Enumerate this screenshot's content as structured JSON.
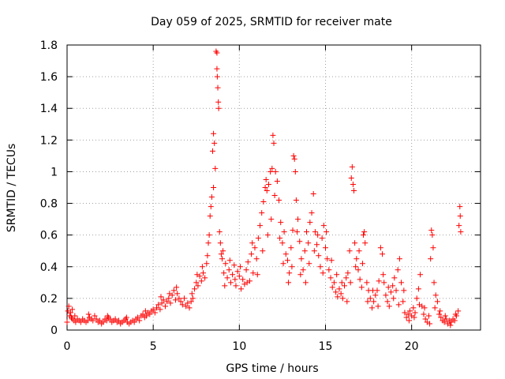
{
  "chart_data": {
    "type": "scatter",
    "title": "Day 059 of 2025, SRMTID for receiver mate",
    "xlabel": "GPS time / hours",
    "ylabel": "SRMTID / TECUs",
    "xlim": [
      0,
      24
    ],
    "ylim": [
      0,
      1.8
    ],
    "xticks": [
      0,
      5,
      10,
      15,
      20
    ],
    "xtick_labels": [
      "0",
      "5",
      "10",
      "15",
      "20"
    ],
    "yticks": [
      0,
      0.2,
      0.4,
      0.6,
      0.8,
      1.0,
      1.2,
      1.4,
      1.6,
      1.8
    ],
    "ytick_labels": [
      "0",
      "0.2",
      "0.4",
      "0.6",
      "0.8",
      "1",
      "1.2",
      "1.4",
      "1.6",
      "1.8"
    ],
    "grid": true,
    "marker": "plus",
    "color": "#ff0000",
    "series": [
      {
        "name": "SRMTID",
        "points": [
          [
            0.0,
            0.05
          ],
          [
            0.05,
            0.12
          ],
          [
            0.1,
            0.15
          ],
          [
            0.15,
            0.09
          ],
          [
            0.2,
            0.11
          ],
          [
            0.25,
            0.08
          ],
          [
            0.3,
            0.07
          ],
          [
            0.4,
            0.06
          ],
          [
            0.5,
            0.05
          ],
          [
            0.6,
            0.07
          ],
          [
            0.7,
            0.06
          ],
          [
            0.8,
            0.05
          ],
          [
            0.9,
            0.07
          ],
          [
            1.0,
            0.06
          ],
          [
            1.1,
            0.05
          ],
          [
            1.2,
            0.06
          ],
          [
            1.3,
            0.08
          ],
          [
            1.4,
            0.07
          ],
          [
            1.5,
            0.06
          ],
          [
            1.6,
            0.09
          ],
          [
            1.7,
            0.07
          ],
          [
            1.8,
            0.05
          ],
          [
            1.9,
            0.06
          ],
          [
            2.0,
            0.04
          ],
          [
            2.1,
            0.05
          ],
          [
            2.2,
            0.07
          ],
          [
            2.3,
            0.06
          ],
          [
            2.4,
            0.08
          ],
          [
            2.5,
            0.07
          ],
          [
            2.6,
            0.05
          ],
          [
            2.7,
            0.06
          ],
          [
            2.8,
            0.07
          ],
          [
            2.9,
            0.05
          ],
          [
            3.0,
            0.06
          ],
          [
            3.1,
            0.04
          ],
          [
            3.2,
            0.05
          ],
          [
            3.3,
            0.06
          ],
          [
            3.4,
            0.07
          ],
          [
            3.5,
            0.05
          ],
          [
            3.6,
            0.04
          ],
          [
            3.7,
            0.05
          ],
          [
            3.8,
            0.06
          ],
          [
            3.9,
            0.05
          ],
          [
            4.0,
            0.07
          ],
          [
            4.1,
            0.08
          ],
          [
            4.2,
            0.06
          ],
          [
            4.3,
            0.09
          ],
          [
            4.4,
            0.1
          ],
          [
            4.5,
            0.08
          ],
          [
            4.6,
            0.09
          ],
          [
            4.7,
            0.11
          ],
          [
            4.8,
            0.1
          ],
          [
            4.9,
            0.12
          ],
          [
            5.0,
            0.13
          ],
          [
            5.1,
            0.11
          ],
          [
            5.2,
            0.14
          ],
          [
            5.3,
            0.16
          ],
          [
            5.4,
            0.13
          ],
          [
            5.5,
            0.17
          ],
          [
            5.6,
            0.19
          ],
          [
            5.7,
            0.15
          ],
          [
            5.8,
            0.18
          ],
          [
            5.9,
            0.2
          ],
          [
            6.0,
            0.17
          ],
          [
            6.1,
            0.22
          ],
          [
            6.2,
            0.25
          ],
          [
            6.3,
            0.19
          ],
          [
            6.4,
            0.23
          ],
          [
            6.5,
            0.2
          ],
          [
            6.6,
            0.18
          ],
          [
            6.7,
            0.16
          ],
          [
            6.8,
            0.2
          ],
          [
            6.9,
            0.15
          ],
          [
            7.0,
            0.17
          ],
          [
            7.1,
            0.14
          ],
          [
            7.2,
            0.18
          ],
          [
            7.3,
            0.2
          ],
          [
            7.4,
            0.26
          ],
          [
            7.5,
            0.3
          ],
          [
            7.6,
            0.28
          ],
          [
            7.7,
            0.34
          ],
          [
            7.8,
            0.31
          ],
          [
            7.9,
            0.36
          ],
          [
            8.0,
            0.33
          ],
          [
            8.1,
            0.42
          ],
          [
            8.2,
            0.55
          ],
          [
            8.3,
            0.72
          ],
          [
            8.35,
            0.78
          ],
          [
            8.4,
            0.84
          ],
          [
            8.45,
            1.13
          ],
          [
            8.5,
            1.24
          ],
          [
            8.5,
            0.9
          ],
          [
            8.55,
            1.18
          ],
          [
            8.6,
            1.02
          ],
          [
            8.65,
            1.76
          ],
          [
            8.7,
            1.75
          ],
          [
            8.7,
            1.65
          ],
          [
            8.72,
            1.6
          ],
          [
            8.75,
            1.53
          ],
          [
            8.78,
            1.44
          ],
          [
            8.8,
            1.4
          ],
          [
            8.85,
            0.62
          ],
          [
            8.9,
            0.55
          ],
          [
            8.95,
            0.48
          ],
          [
            9.0,
            0.45
          ],
          [
            9.1,
            0.36
          ],
          [
            9.2,
            0.42
          ],
          [
            9.3,
            0.33
          ],
          [
            9.4,
            0.38
          ],
          [
            9.5,
            0.3
          ],
          [
            9.6,
            0.35
          ],
          [
            9.7,
            0.41
          ],
          [
            9.8,
            0.28
          ],
          [
            9.9,
            0.37
          ],
          [
            10.0,
            0.34
          ],
          [
            10.1,
            0.26
          ],
          [
            10.2,
            0.32
          ],
          [
            10.3,
            0.29
          ],
          [
            10.4,
            0.38
          ],
          [
            10.5,
            0.43
          ],
          [
            10.6,
            0.31
          ],
          [
            10.7,
            0.48
          ],
          [
            10.8,
            0.36
          ],
          [
            10.9,
            0.52
          ],
          [
            11.0,
            0.45
          ],
          [
            11.1,
            0.58
          ],
          [
            11.2,
            0.66
          ],
          [
            11.3,
            0.74
          ],
          [
            11.4,
            0.81
          ],
          [
            11.5,
            0.9
          ],
          [
            11.55,
            0.95
          ],
          [
            11.6,
            0.88
          ],
          [
            11.7,
            0.92
          ],
          [
            11.8,
            1.0
          ],
          [
            11.9,
            1.02
          ],
          [
            11.95,
            1.23
          ],
          [
            12.0,
            1.18
          ],
          [
            12.1,
            1.0
          ],
          [
            12.2,
            0.94
          ],
          [
            12.3,
            0.82
          ],
          [
            12.4,
            0.68
          ],
          [
            12.5,
            0.55
          ],
          [
            12.6,
            0.62
          ],
          [
            12.7,
            0.48
          ],
          [
            12.8,
            0.44
          ],
          [
            12.9,
            0.36
          ],
          [
            13.0,
            0.52
          ],
          [
            13.1,
            0.63
          ],
          [
            13.15,
            1.1
          ],
          [
            13.2,
            1.08
          ],
          [
            13.25,
            1.0
          ],
          [
            13.3,
            0.82
          ],
          [
            13.4,
            0.7
          ],
          [
            13.5,
            0.56
          ],
          [
            13.6,
            0.45
          ],
          [
            13.7,
            0.38
          ],
          [
            13.8,
            0.5
          ],
          [
            13.9,
            0.62
          ],
          [
            14.0,
            0.55
          ],
          [
            14.1,
            0.68
          ],
          [
            14.2,
            0.74
          ],
          [
            14.3,
            0.86
          ],
          [
            14.4,
            0.62
          ],
          [
            14.5,
            0.54
          ],
          [
            14.6,
            0.47
          ],
          [
            14.7,
            0.4
          ],
          [
            14.8,
            0.58
          ],
          [
            14.9,
            0.66
          ],
          [
            15.0,
            0.52
          ],
          [
            15.1,
            0.45
          ],
          [
            15.2,
            0.38
          ],
          [
            15.3,
            0.33
          ],
          [
            15.4,
            0.27
          ],
          [
            15.5,
            0.3
          ],
          [
            15.6,
            0.24
          ],
          [
            15.7,
            0.21
          ],
          [
            15.8,
            0.26
          ],
          [
            15.9,
            0.23
          ],
          [
            16.0,
            0.2
          ],
          [
            16.1,
            0.28
          ],
          [
            16.2,
            0.33
          ],
          [
            16.3,
            0.36
          ],
          [
            16.4,
            0.5
          ],
          [
            16.5,
            0.96
          ],
          [
            16.55,
            1.03
          ],
          [
            16.6,
            0.92
          ],
          [
            16.65,
            0.88
          ],
          [
            16.7,
            0.55
          ],
          [
            16.8,
            0.45
          ],
          [
            16.9,
            0.38
          ],
          [
            17.0,
            0.32
          ],
          [
            17.1,
            0.27
          ],
          [
            17.2,
            0.6
          ],
          [
            17.25,
            0.62
          ],
          [
            17.3,
            0.55
          ],
          [
            17.4,
            0.3
          ],
          [
            17.5,
            0.25
          ],
          [
            17.6,
            0.2
          ],
          [
            17.7,
            0.14
          ],
          [
            17.8,
            0.18
          ],
          [
            17.9,
            0.22
          ],
          [
            18.0,
            0.25
          ],
          [
            18.1,
            0.31
          ],
          [
            18.2,
            0.52
          ],
          [
            18.3,
            0.48
          ],
          [
            18.4,
            0.3
          ],
          [
            18.5,
            0.22
          ],
          [
            18.6,
            0.18
          ],
          [
            18.7,
            0.15
          ],
          [
            18.8,
            0.24
          ],
          [
            18.9,
            0.28
          ],
          [
            19.0,
            0.33
          ],
          [
            19.1,
            0.25
          ],
          [
            19.2,
            0.38
          ],
          [
            19.3,
            0.45
          ],
          [
            19.4,
            0.3
          ],
          [
            19.5,
            0.18
          ],
          [
            19.6,
            0.11
          ],
          [
            19.7,
            0.08
          ],
          [
            19.8,
            0.1
          ],
          [
            19.9,
            0.12
          ],
          [
            20.0,
            0.09
          ],
          [
            20.1,
            0.14
          ],
          [
            20.2,
            0.11
          ],
          [
            20.3,
            0.2
          ],
          [
            20.4,
            0.26
          ],
          [
            20.5,
            0.35
          ],
          [
            20.6,
            0.15
          ],
          [
            20.7,
            0.1
          ],
          [
            20.8,
            0.07
          ],
          [
            20.9,
            0.05
          ],
          [
            21.0,
            0.09
          ],
          [
            21.1,
            0.45
          ],
          [
            21.15,
            0.63
          ],
          [
            21.2,
            0.6
          ],
          [
            21.25,
            0.52
          ],
          [
            21.3,
            0.3
          ],
          [
            21.4,
            0.22
          ],
          [
            21.5,
            0.18
          ],
          [
            21.6,
            0.1
          ],
          [
            21.7,
            0.08
          ],
          [
            21.8,
            0.06
          ],
          [
            21.9,
            0.05
          ],
          [
            22.0,
            0.07
          ],
          [
            22.1,
            0.04
          ],
          [
            22.2,
            0.06
          ],
          [
            22.3,
            0.05
          ],
          [
            22.4,
            0.07
          ],
          [
            22.5,
            0.06
          ],
          [
            22.6,
            0.09
          ],
          [
            22.7,
            0.12
          ],
          [
            22.75,
            0.66
          ],
          [
            22.8,
            0.78
          ],
          [
            22.82,
            0.72
          ],
          [
            22.85,
            0.62
          ],
          [
            0.3,
            0.13
          ],
          [
            0.45,
            0.09
          ],
          [
            1.25,
            0.1
          ],
          [
            2.35,
            0.09
          ],
          [
            3.45,
            0.08
          ],
          [
            4.55,
            0.12
          ],
          [
            5.45,
            0.21
          ],
          [
            5.95,
            0.23
          ],
          [
            6.35,
            0.27
          ],
          [
            7.25,
            0.23
          ],
          [
            7.55,
            0.35
          ],
          [
            7.85,
            0.4
          ],
          [
            8.15,
            0.47
          ],
          [
            8.25,
            0.6
          ],
          [
            9.05,
            0.5
          ],
          [
            9.15,
            0.28
          ],
          [
            9.45,
            0.44
          ],
          [
            9.75,
            0.32
          ],
          [
            10.05,
            0.4
          ],
          [
            10.45,
            0.3
          ],
          [
            10.75,
            0.55
          ],
          [
            11.05,
            0.35
          ],
          [
            11.35,
            0.5
          ],
          [
            11.65,
            0.6
          ],
          [
            11.85,
            0.7
          ],
          [
            12.05,
            0.85
          ],
          [
            12.35,
            0.58
          ],
          [
            12.55,
            0.42
          ],
          [
            12.85,
            0.3
          ],
          [
            13.05,
            0.4
          ],
          [
            13.35,
            0.62
          ],
          [
            13.55,
            0.35
          ],
          [
            13.85,
            0.3
          ],
          [
            14.05,
            0.42
          ],
          [
            14.35,
            0.5
          ],
          [
            14.55,
            0.6
          ],
          [
            14.85,
            0.36
          ],
          [
            15.05,
            0.62
          ],
          [
            15.35,
            0.44
          ],
          [
            15.65,
            0.35
          ],
          [
            15.95,
            0.3
          ],
          [
            16.25,
            0.18
          ],
          [
            16.45,
            0.3
          ],
          [
            16.75,
            0.4
          ],
          [
            16.95,
            0.5
          ],
          [
            17.15,
            0.42
          ],
          [
            17.45,
            0.18
          ],
          [
            17.75,
            0.25
          ],
          [
            18.05,
            0.15
          ],
          [
            18.35,
            0.35
          ],
          [
            18.65,
            0.27
          ],
          [
            18.95,
            0.2
          ],
          [
            19.25,
            0.16
          ],
          [
            19.55,
            0.25
          ],
          [
            19.85,
            0.06
          ],
          [
            20.15,
            0.08
          ],
          [
            20.45,
            0.16
          ],
          [
            20.75,
            0.14
          ],
          [
            21.05,
            0.04
          ],
          [
            21.35,
            0.14
          ],
          [
            21.65,
            0.12
          ],
          [
            21.95,
            0.09
          ],
          [
            22.25,
            0.03
          ],
          [
            22.55,
            0.1
          ]
        ]
      }
    ]
  }
}
